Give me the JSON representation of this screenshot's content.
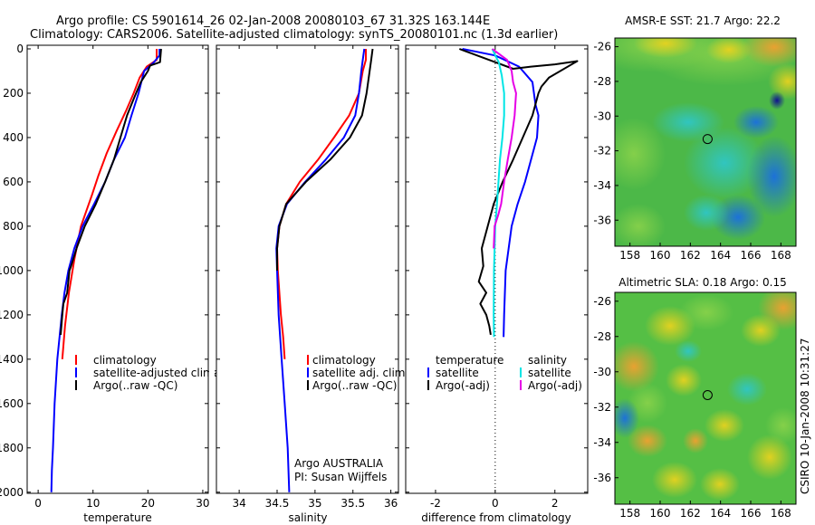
{
  "header": {
    "line1": "Argo profile: CS 5901614_26 02-Jan-2008 20080103_67 31.32S 163.144E",
    "line2": "Climatology: CARS2006. Satellite-adjusted climatology: synTS_20080101.nc (1.3d earlier)"
  },
  "footer": {
    "argo": "Argo AUSTRALIA",
    "pi": "PI: Susan Wijffels",
    "stamp": "CSIRO 10-Jan-2008 10:31:27"
  },
  "colors": {
    "climatology": "#ff0000",
    "satellite": "#0000ff",
    "argo": "#000000",
    "salinity_sat": "#00e5e5",
    "salinity_argo": "#e600e6"
  },
  "chart_data": [
    {
      "type": "line",
      "xlabel": "temperature",
      "xlim": [
        -2,
        31
      ],
      "ylim": [
        0,
        2050
      ],
      "y_reversed": true,
      "xticks": [
        0,
        10,
        20,
        30
      ],
      "yticks": [
        0,
        200,
        400,
        600,
        800,
        1000,
        1200,
        1400,
        1600,
        1800,
        2000
      ],
      "legend": [
        "climatology",
        "satellite-adjusted climatology",
        "Argo(..raw -QC)"
      ],
      "series": [
        {
          "name": "climatology",
          "color": "#ff0000",
          "x": [
            21.6,
            21.6,
            19.8,
            18.5,
            17.4,
            16.0,
            14.3,
            12.5,
            11.0,
            9.8,
            7.8,
            6.6,
            5.6,
            4.9,
            4.4
          ],
          "y": [
            0,
            50,
            80,
            130,
            200,
            280,
            370,
            470,
            570,
            660,
            800,
            950,
            1100,
            1250,
            1400
          ]
        },
        {
          "name": "satellite-adjusted climatology",
          "color": "#0000ff",
          "x": [
            22.1,
            22.1,
            21.1,
            19.3,
            18.3,
            17.0,
            15.8,
            13.8,
            12.2,
            10.2,
            8.1,
            6.6,
            5.5,
            4.8,
            4.3,
            3.5,
            3.0,
            2.7,
            2.5,
            2.4
          ],
          "y": [
            0,
            30,
            60,
            100,
            200,
            300,
            400,
            500,
            600,
            700,
            800,
            900,
            1000,
            1100,
            1200,
            1400,
            1600,
            1800,
            1900,
            2000
          ]
        },
        {
          "name": "Argo(..raw -QC)",
          "color": "#000000",
          "x": [
            22.4,
            22.3,
            22.2,
            20.4,
            20.0,
            18.7,
            17.5,
            16.2,
            15.0,
            13.8,
            12.2,
            10.5,
            8.5,
            7.0,
            6.0,
            5.7,
            5.3,
            4.6,
            4.4,
            4.2,
            4.1
          ],
          "y": [
            0,
            30,
            60,
            75,
            100,
            150,
            220,
            300,
            400,
            500,
            600,
            700,
            800,
            900,
            980,
            1000,
            1100,
            1150,
            1200,
            1260,
            1290
          ]
        }
      ]
    },
    {
      "type": "line",
      "xlabel": "salinity",
      "xlim": [
        33.7,
        36.1
      ],
      "ylim": [
        0,
        2050
      ],
      "y_reversed": true,
      "xticks": [
        34,
        34.5,
        35,
        35.5,
        36
      ],
      "xticklabels": [
        "34",
        "34.5",
        "35",
        "35.5",
        "36"
      ],
      "legend": [
        "climatology",
        "satellite adj. clim.",
        "Argo(..raw -QC)"
      ],
      "series": [
        {
          "name": "climatology",
          "color": "#ff0000",
          "x": [
            35.67,
            35.67,
            35.63,
            35.58,
            35.45,
            35.25,
            35.04,
            34.8,
            34.62,
            34.53,
            34.5,
            34.51,
            34.55,
            34.58,
            34.6
          ],
          "y": [
            0,
            50,
            100,
            200,
            300,
            400,
            500,
            600,
            700,
            800,
            900,
            1000,
            1200,
            1300,
            1400
          ]
        },
        {
          "name": "satellite adj. clim.",
          "color": "#0000ff",
          "x": [
            35.65,
            35.63,
            35.61,
            35.58,
            35.53,
            35.38,
            35.14,
            34.87,
            34.63,
            34.52,
            34.49,
            34.5,
            34.52,
            34.56,
            34.6,
            34.64,
            34.66
          ],
          "y": [
            0,
            50,
            100,
            200,
            300,
            400,
            500,
            600,
            700,
            800,
            900,
            1000,
            1200,
            1400,
            1600,
            1800,
            2000
          ]
        },
        {
          "name": "Argo(..raw -QC)",
          "color": "#000000",
          "x": [
            35.76,
            35.74,
            35.72,
            35.68,
            35.62,
            35.46,
            35.2,
            34.88,
            34.62,
            34.53,
            34.5,
            34.5
          ],
          "y": [
            0,
            50,
            100,
            200,
            300,
            400,
            500,
            600,
            700,
            800,
            900,
            1000
          ]
        }
      ]
    },
    {
      "type": "line",
      "xlabel": "difference from climatology",
      "xlim": [
        -3,
        3.1
      ],
      "ylim": [
        0,
        2050
      ],
      "y_reversed": true,
      "xticks": [
        -2,
        0,
        2
      ],
      "zero_line": true,
      "legend": [
        "temperature",
        "satellite",
        "Argo(-adj)",
        "salinity",
        "satellite",
        "Argo(-adj)"
      ],
      "series": [
        {
          "name": "satellite",
          "group": "temperature",
          "color": "#0000ff",
          "x": [
            -1.1,
            0.0,
            0.8,
            1.25,
            1.35,
            1.45,
            1.4,
            1.0,
            0.75,
            0.55,
            0.45,
            0.35,
            0.3,
            0.28
          ],
          "y": [
            0,
            30,
            80,
            150,
            250,
            300,
            400,
            600,
            700,
            800,
            900,
            1000,
            1200,
            1300
          ]
        },
        {
          "name": "Argo(-adj)",
          "group": "temperature",
          "color": "#000000",
          "x": [
            -1.2,
            -0.4,
            0.0,
            0.6,
            1.2,
            2.0,
            2.75,
            1.8,
            1.55,
            1.45,
            1.25,
            0.6,
            0.25,
            -0.05,
            -0.25,
            -0.45,
            -0.4,
            -0.55,
            -0.3,
            -0.5,
            -0.3,
            -0.2,
            -0.15
          ],
          "y": [
            0,
            40,
            60,
            90,
            80,
            70,
            55,
            130,
            170,
            200,
            300,
            500,
            600,
            700,
            800,
            900,
            980,
            1050,
            1100,
            1150,
            1200,
            1250,
            1290
          ]
        },
        {
          "name": "satellite",
          "group": "salinity",
          "color": "#00e5e5",
          "x": [
            -0.1,
            0.0,
            0.12,
            0.22,
            0.3,
            0.3,
            0.24,
            0.16,
            0.06,
            0.0,
            -0.02,
            -0.04,
            -0.05,
            -0.04
          ],
          "y": [
            0,
            30,
            60,
            120,
            200,
            300,
            400,
            500,
            700,
            800,
            900,
            1000,
            1200,
            1300
          ]
        },
        {
          "name": "Argo(-adj)",
          "group": "salinity",
          "color": "#e600e6",
          "x": [
            -0.1,
            0.2,
            0.4,
            0.55,
            0.6,
            0.7,
            0.65,
            0.55,
            0.42,
            0.3,
            0.2,
            0.1,
            -0.02,
            -0.05
          ],
          "y": [
            0,
            30,
            50,
            100,
            150,
            200,
            300,
            400,
            500,
            600,
            700,
            750,
            800,
            900
          ]
        }
      ]
    },
    {
      "type": "heatmap",
      "title": "AMSR-E SST: 21.7 Argo: 22.2",
      "xlim": [
        157,
        169
      ],
      "ylim": [
        -37.5,
        -25.5
      ],
      "xticks": [
        158,
        160,
        162,
        164,
        166,
        168
      ],
      "yticks": [
        -26,
        -28,
        -30,
        -32,
        -34,
        -36
      ],
      "marker": [
        163.144,
        -31.32
      ]
    },
    {
      "type": "heatmap",
      "title": "Altimetric SLA: 0.18 Argo: 0.15",
      "xlim": [
        157,
        169
      ],
      "ylim": [
        -37.5,
        -25.5
      ],
      "xticks": [
        158,
        160,
        162,
        164,
        166,
        168
      ],
      "yticks": [
        -26,
        -28,
        -30,
        -32,
        -34,
        -36
      ],
      "marker": [
        163.144,
        -31.32
      ]
    }
  ]
}
